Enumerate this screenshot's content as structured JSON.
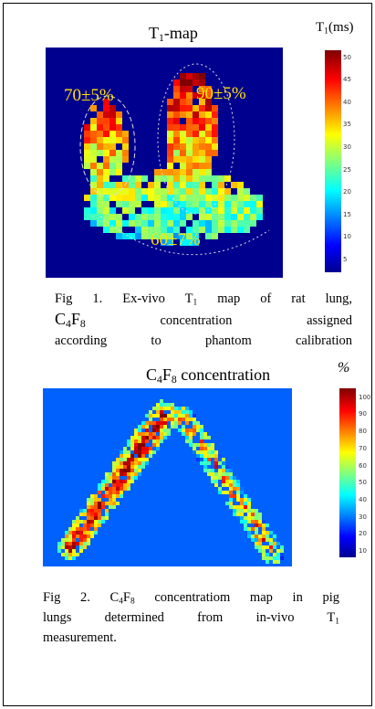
{
  "fig1": {
    "title": [
      "T",
      "1",
      "-map"
    ],
    "colorbar_label": [
      "T",
      "1",
      "(ms)"
    ],
    "colorbar_ticks": [
      5,
      10,
      15,
      20,
      25,
      30,
      35,
      40,
      45,
      50
    ],
    "annotations": [
      "70±5%",
      "90±5%",
      "60±7%"
    ],
    "caption": [
      [
        "Fig 1. Ex-vivo T",
        "1",
        " map of rat lung,"
      ],
      [
        "C",
        "4",
        "F",
        "8",
        " concentration assigned"
      ],
      [
        "according to phantom calibration"
      ]
    ]
  },
  "fig2": {
    "title": [
      "C",
      "4",
      "F",
      "8",
      " concentration"
    ],
    "colorbar_label": "%",
    "colorbar_ticks": [
      10,
      20,
      30,
      40,
      50,
      60,
      70,
      80,
      90,
      100
    ],
    "caption": [
      [
        "Fig 2. C",
        "4",
        "F",
        "8",
        " concentratiom map in pig"
      ],
      [
        "lungs determined from in-vivo T",
        "1"
      ],
      [
        "measurement."
      ]
    ]
  }
}
